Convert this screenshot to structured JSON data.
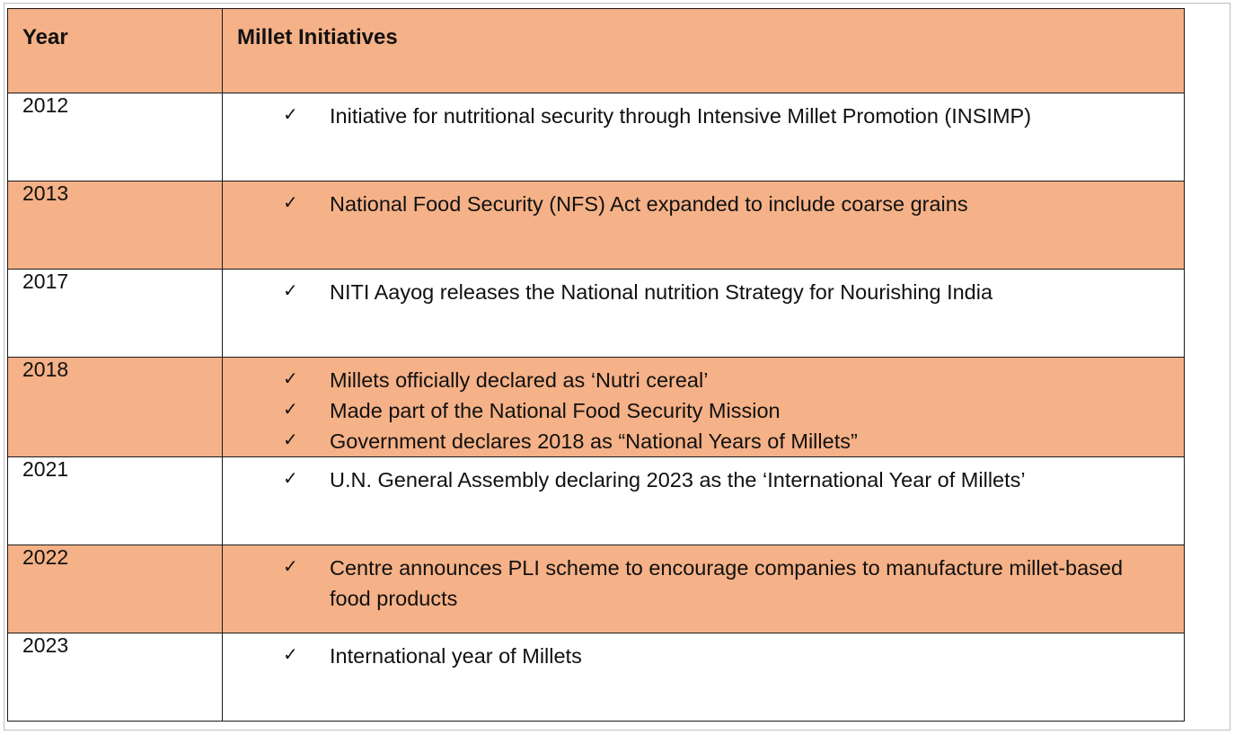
{
  "table": {
    "headers": {
      "year": "Year",
      "initiatives": "Millet Initiatives"
    },
    "check_glyph": "✓",
    "rows": [
      {
        "year": "2012",
        "shaded": false,
        "items": [
          "Initiative for nutritional security through Intensive Millet Promotion (INSIMP)"
        ]
      },
      {
        "year": "2013",
        "shaded": true,
        "items": [
          "National Food Security (NFS) Act expanded to include coarse grains"
        ]
      },
      {
        "year": "2017",
        "shaded": false,
        "items": [
          "NITI Aayog releases the National nutrition Strategy for Nourishing India"
        ]
      },
      {
        "year": "2018",
        "shaded": true,
        "items": [
          "Millets officially declared as ‘Nutri cereal’",
          "Made part of the National Food Security Mission",
          "Government declares 2018 as “National Years of Millets”"
        ]
      },
      {
        "year": "2021",
        "shaded": false,
        "items": [
          "U.N. General Assembly declaring 2023 as the  ‘International Year of Millets’"
        ]
      },
      {
        "year": "2022",
        "shaded": true,
        "items": [
          "Centre announces PLI scheme to encourage companies to manufacture millet-based food products"
        ]
      },
      {
        "year": "2023",
        "shaded": false,
        "items": [
          "International year of Millets"
        ]
      }
    ]
  },
  "colors": {
    "shade": "#f5b187",
    "border": "#1a1a1a",
    "frame": "#bdbdbd"
  },
  "icons": {
    "check": "checkmark-icon"
  }
}
